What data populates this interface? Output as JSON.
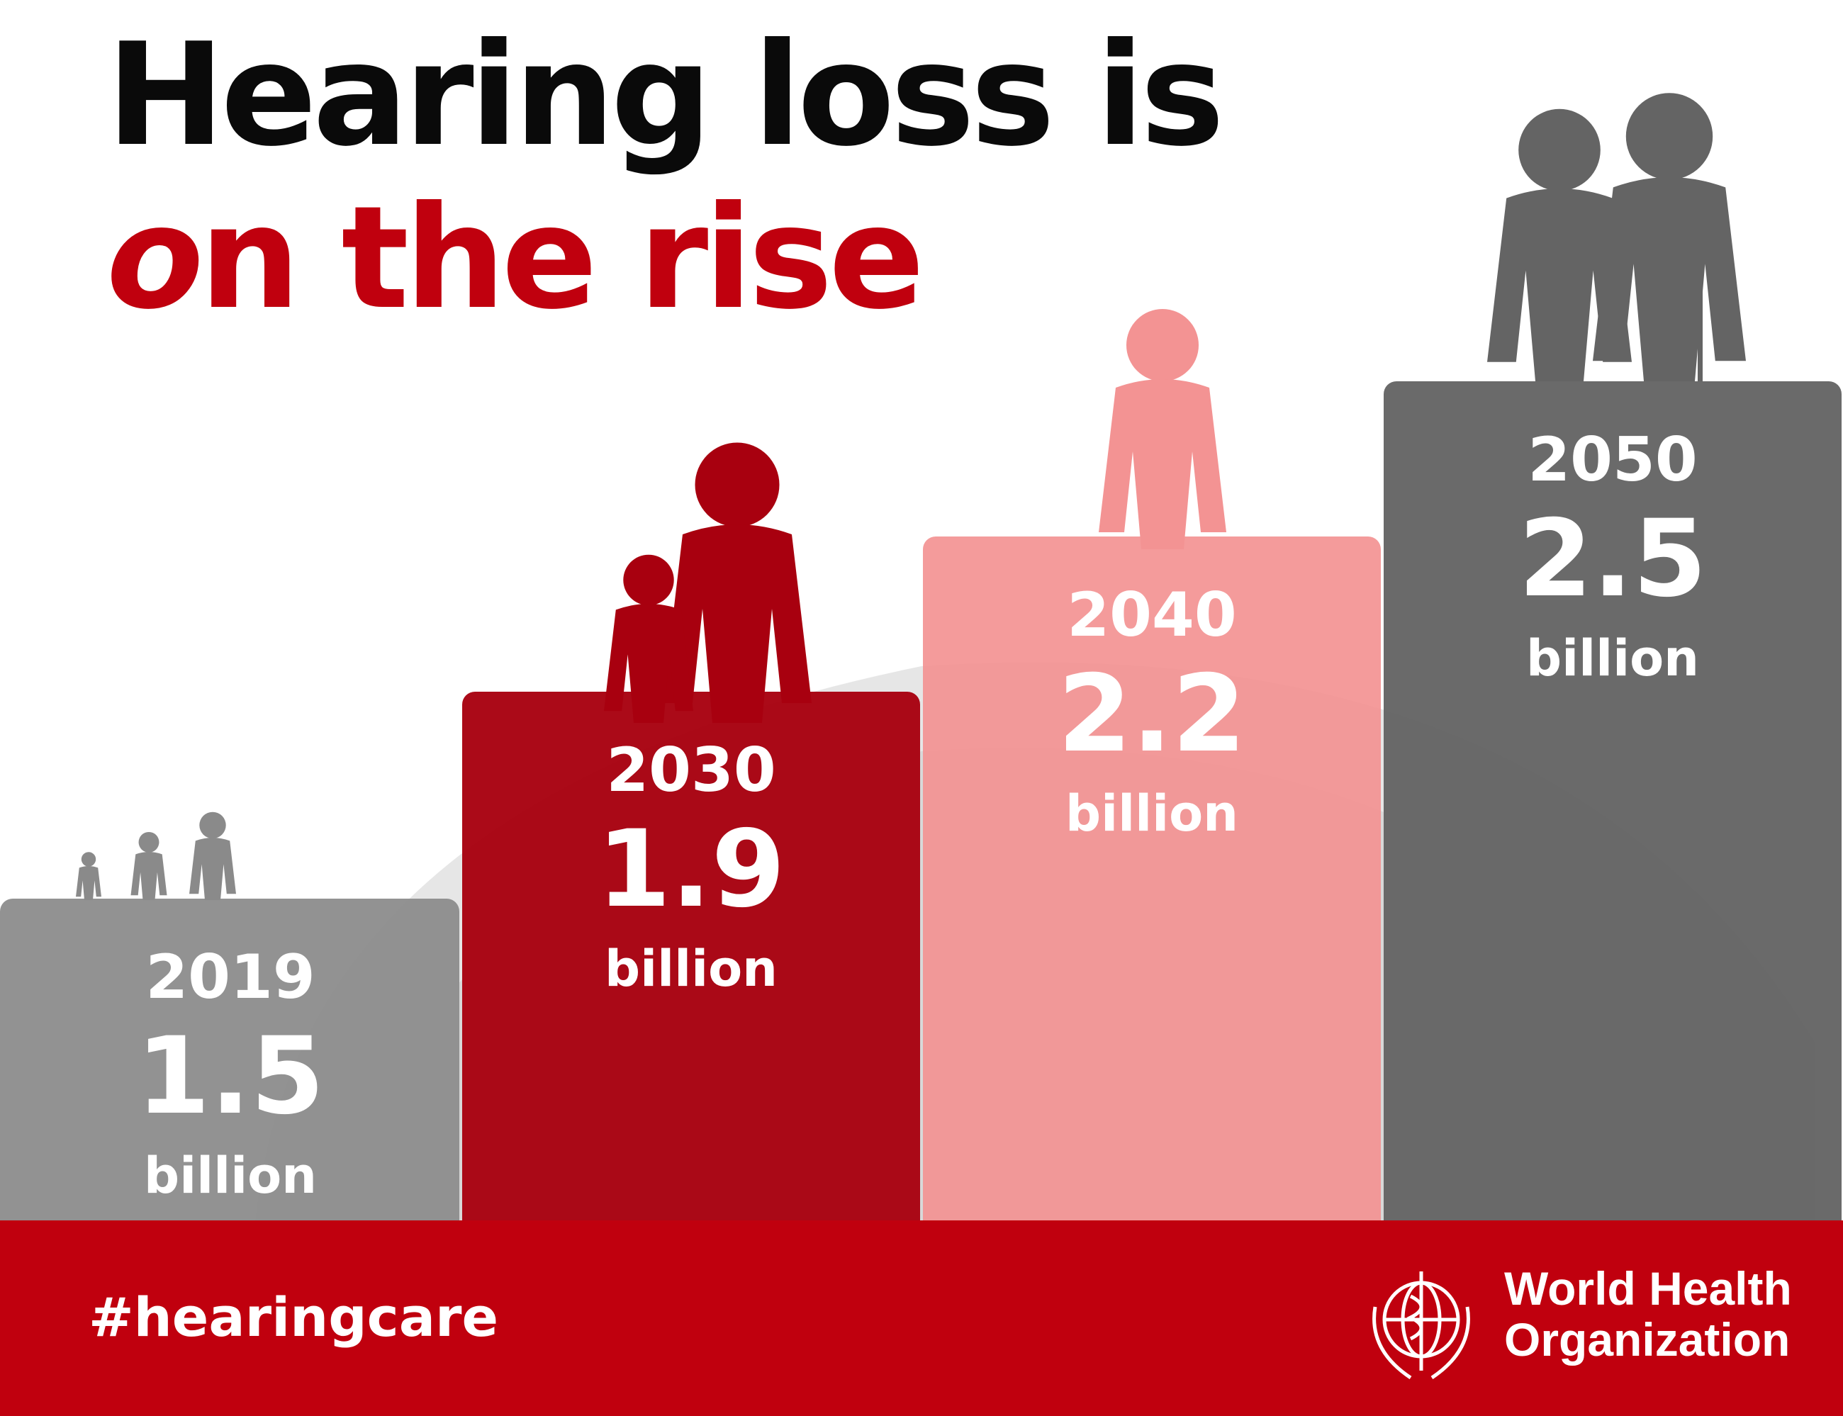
{
  "headline": {
    "line1": "Hearing loss is",
    "line2_em": "o",
    "line2_rest": "n the rise"
  },
  "chart_data": {
    "type": "bar",
    "categories": [
      "2019",
      "2030",
      "2040",
      "2050"
    ],
    "values": [
      1.5,
      1.9,
      2.2,
      2.5
    ],
    "value_labels": [
      "1.5",
      "1.9",
      "2.2",
      "2.5"
    ],
    "unit": "billion",
    "colors": [
      "#8e8e8e",
      "#a8000f",
      "#f39393",
      "#646464"
    ],
    "title": "",
    "xlabel": "",
    "ylabel": ""
  },
  "footer": {
    "hashtag": "#hearingcare",
    "org_line1": "World Health",
    "org_line2": "Organization",
    "bg_color": "#c0000e"
  }
}
